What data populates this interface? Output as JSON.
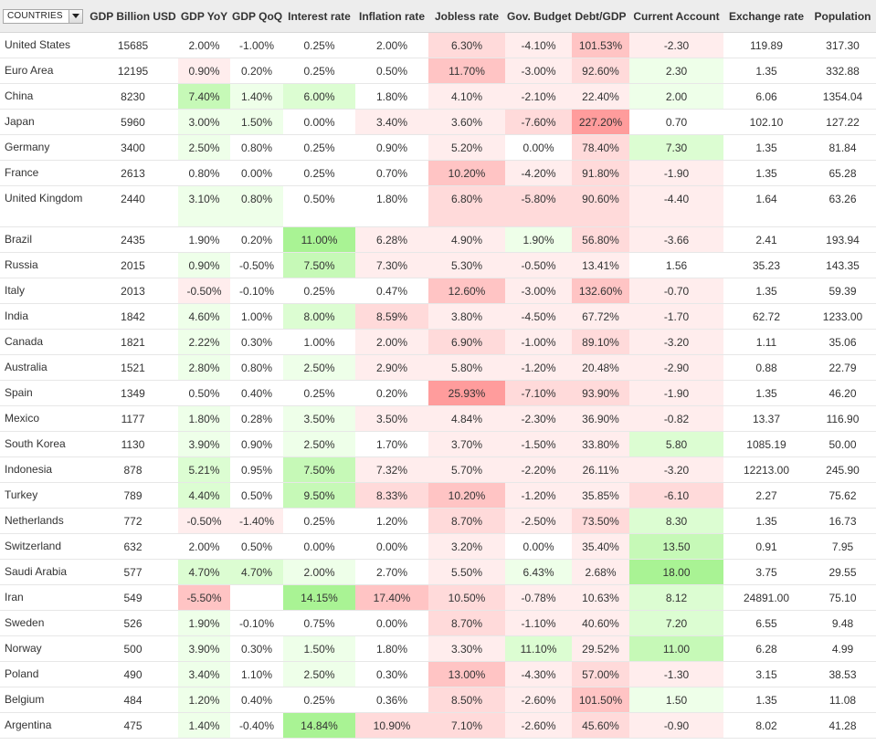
{
  "header": {
    "countries_label": "COUNTRIES",
    "columns": [
      "GDP Billion USD",
      "GDP YoY",
      "GDP QoQ",
      "Interest rate",
      "Inflation rate",
      "Jobless rate",
      "Gov. Budget",
      "Debt/GDP",
      "Current Account",
      "Exchange rate",
      "Population"
    ]
  },
  "colors": {
    "header_bg": "#ededed",
    "negative_light": "#ffeded",
    "negative_strong": "#ff9c9c",
    "positive_light": "#eeffe9",
    "positive_strong": "#a9f394"
  },
  "rows": [
    {
      "country": "United States",
      "values": [
        "15685",
        "2.00%",
        "-1.00%",
        "0.25%",
        "2.00%",
        "6.30%",
        "-4.10%",
        "101.53%",
        "-2.30",
        "119.89",
        "317.30"
      ]
    },
    {
      "country": "Euro Area",
      "values": [
        "12195",
        "0.90%",
        "0.20%",
        "0.25%",
        "0.50%",
        "11.70%",
        "-3.00%",
        "92.60%",
        "2.30",
        "1.35",
        "332.88"
      ]
    },
    {
      "country": "China",
      "values": [
        "8230",
        "7.40%",
        "1.40%",
        "6.00%",
        "1.80%",
        "4.10%",
        "-2.10%",
        "22.40%",
        "2.00",
        "6.06",
        "1354.04"
      ]
    },
    {
      "country": "Japan",
      "values": [
        "5960",
        "3.00%",
        "1.50%",
        "0.00%",
        "3.40%",
        "3.60%",
        "-7.60%",
        "227.20%",
        "0.70",
        "102.10",
        "127.22"
      ]
    },
    {
      "country": "Germany",
      "values": [
        "3400",
        "2.50%",
        "0.80%",
        "0.25%",
        "0.90%",
        "5.20%",
        "0.00%",
        "78.40%",
        "7.30",
        "1.35",
        "81.84"
      ]
    },
    {
      "country": "France",
      "values": [
        "2613",
        "0.80%",
        "0.00%",
        "0.25%",
        "0.70%",
        "10.20%",
        "-4.20%",
        "91.80%",
        "-1.90",
        "1.35",
        "65.28"
      ]
    },
    {
      "country": "United Kingdom",
      "values": [
        "2440",
        "3.10%",
        "0.80%",
        "0.50%",
        "1.80%",
        "6.80%",
        "-5.80%",
        "90.60%",
        "-4.40",
        "1.64",
        "63.26"
      ]
    },
    {
      "country": "Brazil",
      "values": [
        "2435",
        "1.90%",
        "0.20%",
        "11.00%",
        "6.28%",
        "4.90%",
        "1.90%",
        "56.80%",
        "-3.66",
        "2.41",
        "193.94"
      ]
    },
    {
      "country": "Russia",
      "values": [
        "2015",
        "0.90%",
        "-0.50%",
        "7.50%",
        "7.30%",
        "5.30%",
        "-0.50%",
        "13.41%",
        "1.56",
        "35.23",
        "143.35"
      ]
    },
    {
      "country": "Italy",
      "values": [
        "2013",
        "-0.50%",
        "-0.10%",
        "0.25%",
        "0.47%",
        "12.60%",
        "-3.00%",
        "132.60%",
        "-0.70",
        "1.35",
        "59.39"
      ]
    },
    {
      "country": "India",
      "values": [
        "1842",
        "4.60%",
        "1.00%",
        "8.00%",
        "8.59%",
        "3.80%",
        "-4.50%",
        "67.72%",
        "-1.70",
        "62.72",
        "1233.00"
      ]
    },
    {
      "country": "Canada",
      "values": [
        "1821",
        "2.22%",
        "0.30%",
        "1.00%",
        "2.00%",
        "6.90%",
        "-1.00%",
        "89.10%",
        "-3.20",
        "1.11",
        "35.06"
      ]
    },
    {
      "country": "Australia",
      "values": [
        "1521",
        "2.80%",
        "0.80%",
        "2.50%",
        "2.90%",
        "5.80%",
        "-1.20%",
        "20.48%",
        "-2.90",
        "0.88",
        "22.79"
      ]
    },
    {
      "country": "Spain",
      "values": [
        "1349",
        "0.50%",
        "0.40%",
        "0.25%",
        "0.20%",
        "25.93%",
        "-7.10%",
        "93.90%",
        "-1.90",
        "1.35",
        "46.20"
      ]
    },
    {
      "country": "Mexico",
      "values": [
        "1177",
        "1.80%",
        "0.28%",
        "3.50%",
        "3.50%",
        "4.84%",
        "-2.30%",
        "36.90%",
        "-0.82",
        "13.37",
        "116.90"
      ]
    },
    {
      "country": "South Korea",
      "values": [
        "1130",
        "3.90%",
        "0.90%",
        "2.50%",
        "1.70%",
        "3.70%",
        "-1.50%",
        "33.80%",
        "5.80",
        "1085.19",
        "50.00"
      ]
    },
    {
      "country": "Indonesia",
      "values": [
        "878",
        "5.21%",
        "0.95%",
        "7.50%",
        "7.32%",
        "5.70%",
        "-2.20%",
        "26.11%",
        "-3.20",
        "12213.00",
        "245.90"
      ]
    },
    {
      "country": "Turkey",
      "values": [
        "789",
        "4.40%",
        "0.50%",
        "9.50%",
        "8.33%",
        "10.20%",
        "-1.20%",
        "35.85%",
        "-6.10",
        "2.27",
        "75.62"
      ]
    },
    {
      "country": "Netherlands",
      "values": [
        "772",
        "-0.50%",
        "-1.40%",
        "0.25%",
        "1.20%",
        "8.70%",
        "-2.50%",
        "73.50%",
        "8.30",
        "1.35",
        "16.73"
      ]
    },
    {
      "country": "Switzerland",
      "values": [
        "632",
        "2.00%",
        "0.50%",
        "0.00%",
        "0.00%",
        "3.20%",
        "0.00%",
        "35.40%",
        "13.50",
        "0.91",
        "7.95"
      ]
    },
    {
      "country": "Saudi Arabia",
      "values": [
        "577",
        "4.70%",
        "4.70%",
        "2.00%",
        "2.70%",
        "5.50%",
        "6.43%",
        "2.68%",
        "18.00",
        "3.75",
        "29.55"
      ]
    },
    {
      "country": "Iran",
      "values": [
        "549",
        "-5.50%",
        "",
        "14.15%",
        "17.40%",
        "10.50%",
        "-0.78%",
        "10.63%",
        "8.12",
        "24891.00",
        "75.10"
      ]
    },
    {
      "country": "Sweden",
      "values": [
        "526",
        "1.90%",
        "-0.10%",
        "0.75%",
        "0.00%",
        "8.70%",
        "-1.10%",
        "40.60%",
        "7.20",
        "6.55",
        "9.48"
      ]
    },
    {
      "country": "Norway",
      "values": [
        "500",
        "3.90%",
        "0.30%",
        "1.50%",
        "1.80%",
        "3.30%",
        "11.10%",
        "29.52%",
        "11.00",
        "6.28",
        "4.99"
      ]
    },
    {
      "country": "Poland",
      "values": [
        "490",
        "3.40%",
        "1.10%",
        "2.50%",
        "0.30%",
        "13.00%",
        "-4.30%",
        "57.00%",
        "-1.30",
        "3.15",
        "38.53"
      ]
    },
    {
      "country": "Belgium",
      "values": [
        "484",
        "1.20%",
        "0.40%",
        "0.25%",
        "0.36%",
        "8.50%",
        "-2.60%",
        "101.50%",
        "1.50",
        "1.35",
        "11.08"
      ]
    },
    {
      "country": "Argentina",
      "values": [
        "475",
        "1.40%",
        "-0.40%",
        "14.84%",
        "10.90%",
        "7.10%",
        "-2.60%",
        "45.60%",
        "-0.90",
        "8.02",
        "41.28"
      ]
    }
  ]
}
